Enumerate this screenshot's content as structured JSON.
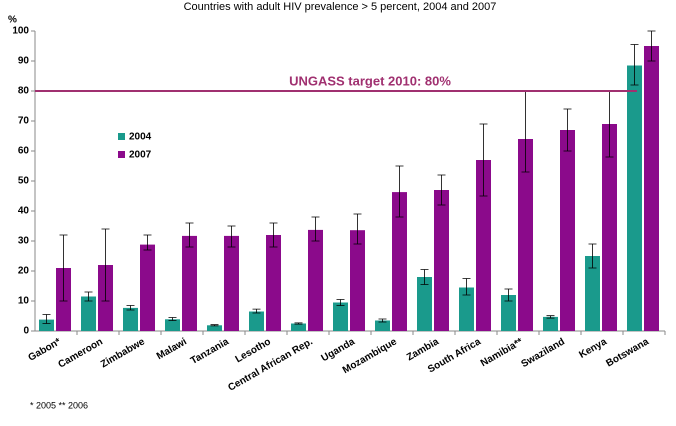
{
  "chart_data": {
    "type": "bar",
    "title": "Countries with adult HIV prevalence > 5 percent, 2004 and 2007",
    "y_label": "%",
    "categories": [
      "Gabon*",
      "Cameroon",
      "Zimbabwe",
      "Malawi",
      "Tanzania",
      "Lesotho",
      "Central African Rep.",
      "Uganda",
      "Mozambique",
      "Zambia",
      "South Africa",
      "Namibia**",
      "Swaziland",
      "Kenya",
      "Botswana"
    ],
    "series": [
      {
        "name": "2004",
        "color": "#1a9a8c",
        "values": [
          3.8,
          11.5,
          7.7,
          3.9,
          1.9,
          6.5,
          2.5,
          9.5,
          3.5,
          18,
          14.5,
          12,
          4.7,
          25,
          88.5
        ],
        "error_low": [
          2.5,
          10,
          7,
          3.5,
          1.7,
          6,
          2.3,
          8.5,
          3,
          15.5,
          12,
          10,
          4.3,
          21,
          82
        ],
        "error_high": [
          5.5,
          13,
          8.5,
          4.5,
          2.1,
          7.3,
          2.7,
          10.5,
          4,
          20.5,
          17.5,
          14,
          5.1,
          29,
          95.5
        ]
      },
      {
        "name": "2007",
        "color": "#8b0a8b",
        "values": [
          21,
          22,
          28.8,
          31.7,
          31.7,
          32,
          33.7,
          33.6,
          46.3,
          47,
          57,
          64,
          67,
          69,
          95
        ],
        "error_low": [
          10,
          10,
          27,
          28,
          28,
          28,
          30,
          29,
          38,
          42,
          45,
          53,
          60,
          58,
          90
        ],
        "error_high": [
          32,
          34,
          32,
          36,
          35,
          36,
          38,
          39,
          55,
          52,
          69,
          80,
          74,
          80,
          100
        ]
      }
    ],
    "target": {
      "value": 80,
      "label": "UNGASS target 2010: 80%",
      "color": "#a03070"
    },
    "footnote": "* 2005 ** 2006",
    "ylim": [
      0,
      100
    ],
    "yticks": [
      0,
      10,
      20,
      30,
      40,
      50,
      60,
      70,
      80,
      90,
      100
    ],
    "grid": false
  }
}
